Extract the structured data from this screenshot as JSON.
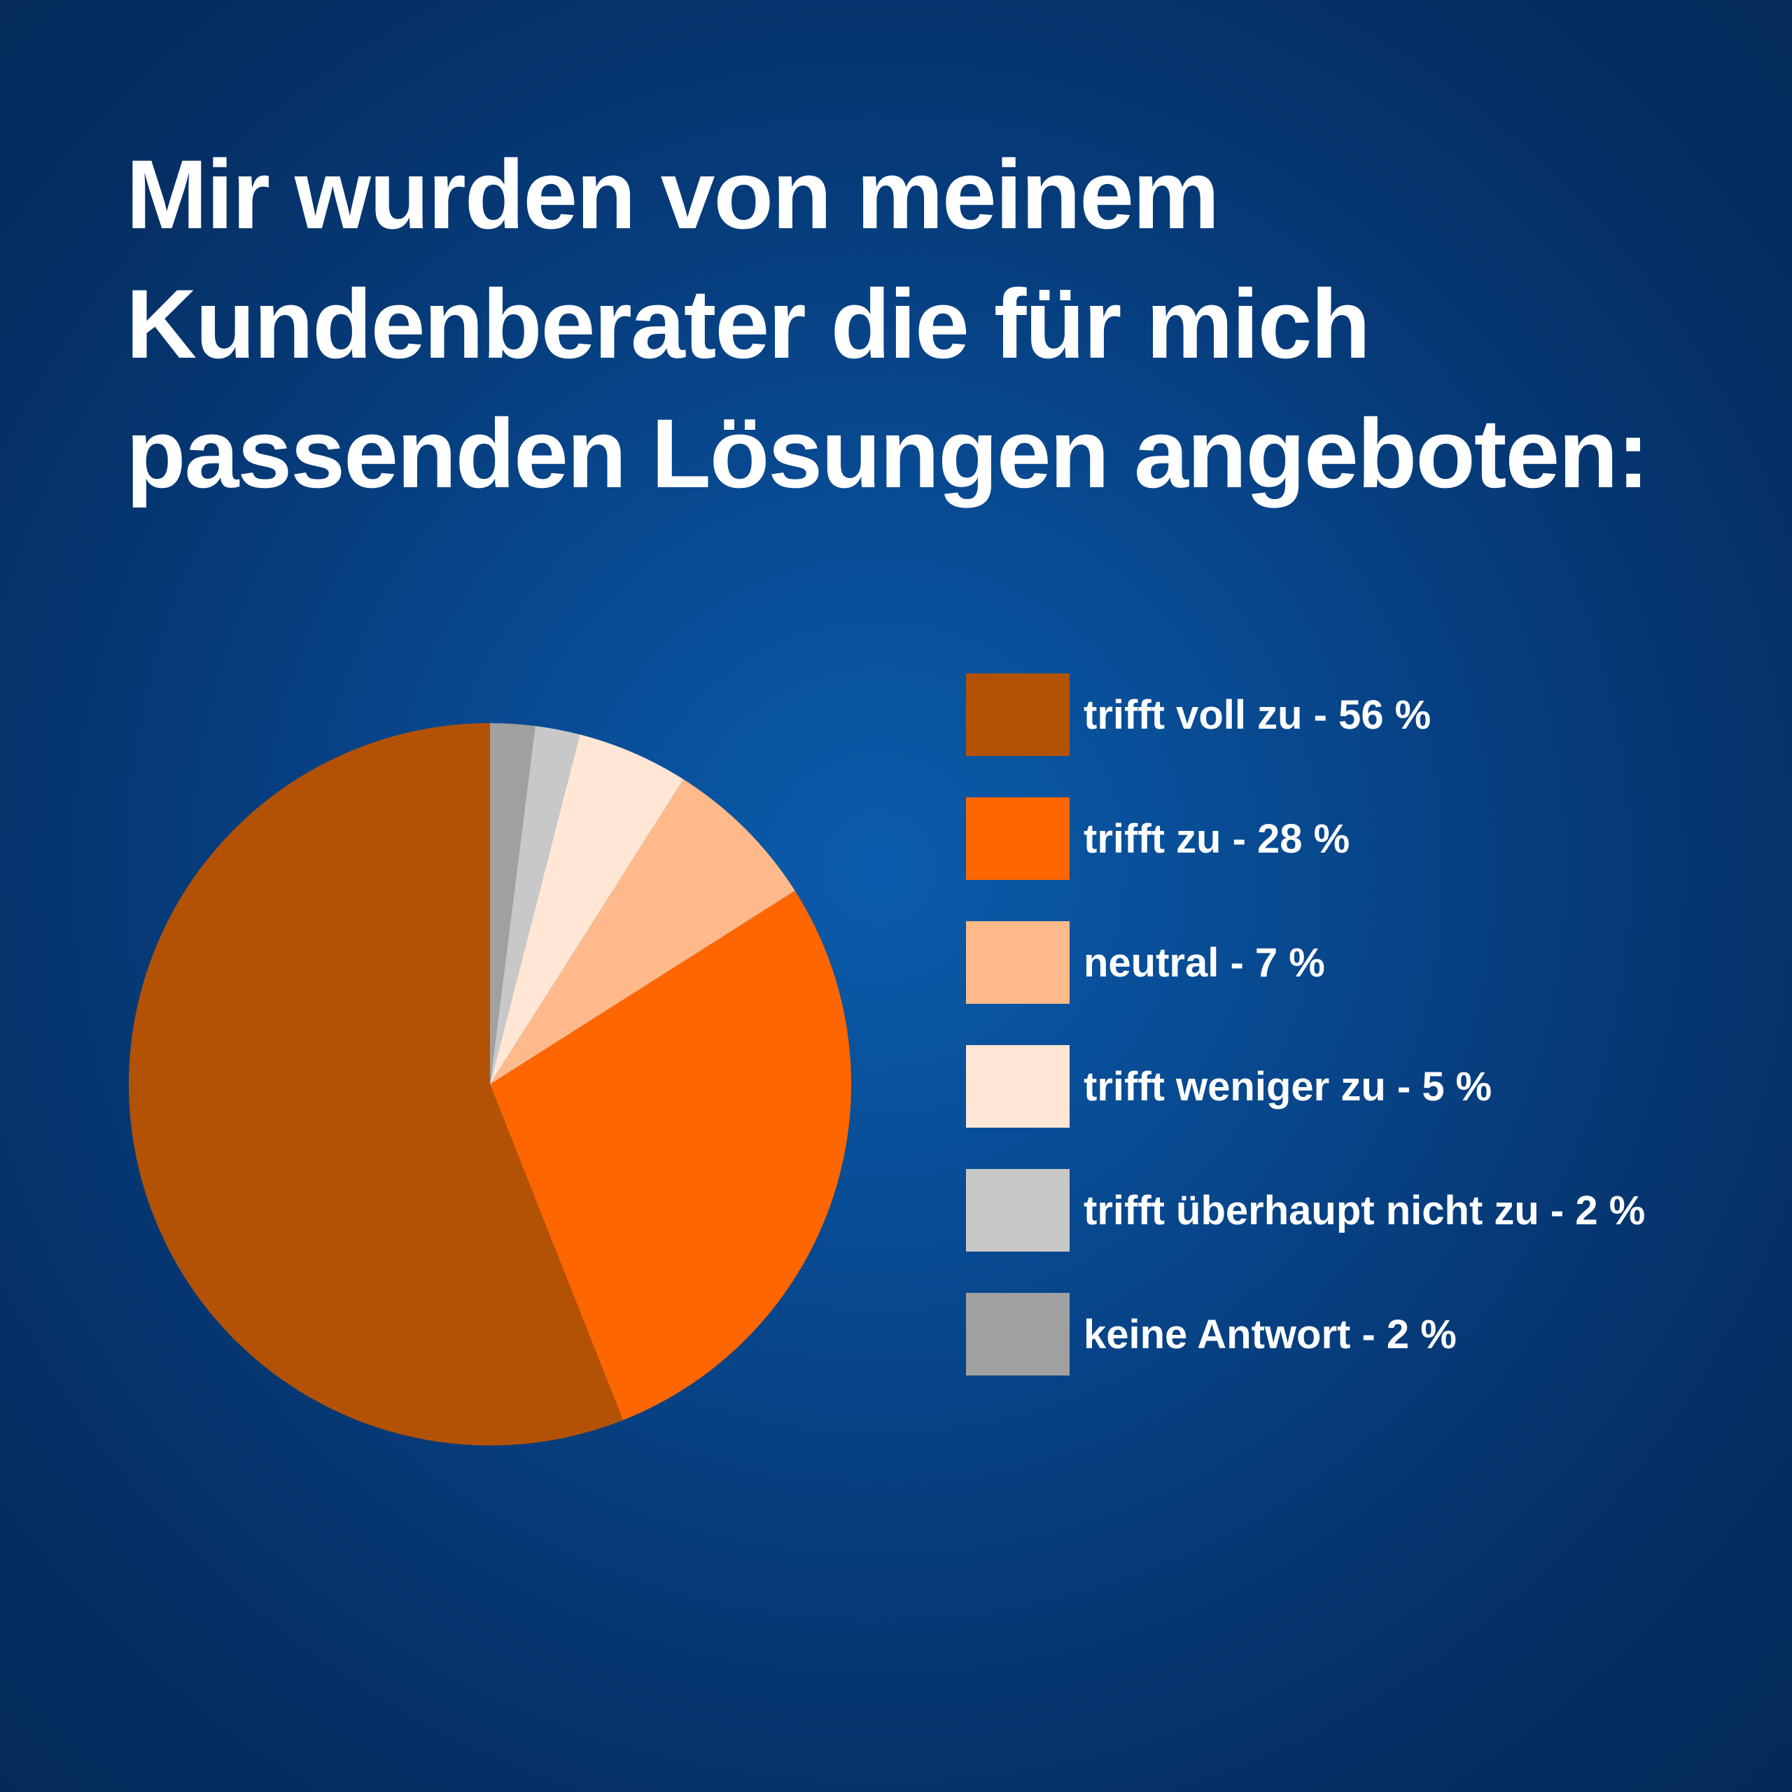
{
  "chart_data": {
    "type": "pie",
    "title": [
      "Mir wurden von meinem",
      "Kundenberater die für mich",
      "passenden Lösungen angeboten:"
    ],
    "slices": [
      {
        "label": "trifft voll zu - 56 %",
        "value": 56,
        "color": "#b35205"
      },
      {
        "label": "trifft zu - 28 %",
        "value": 28,
        "color": "#ff6600"
      },
      {
        "label": "neutral - 7 %",
        "value": 7,
        "color": "#ffb98a"
      },
      {
        "label": "trifft weniger zu - 5 %",
        "value": 5,
        "color": "#ffe6d5"
      },
      {
        "label": "trifft überhaupt nicht zu - 2 %",
        "value": 2,
        "color": "#c8c8c8"
      },
      {
        "label": "keine Antwort - 2 %",
        "value": 2,
        "color": "#a0a0a0"
      }
    ],
    "legend_position": "right"
  }
}
